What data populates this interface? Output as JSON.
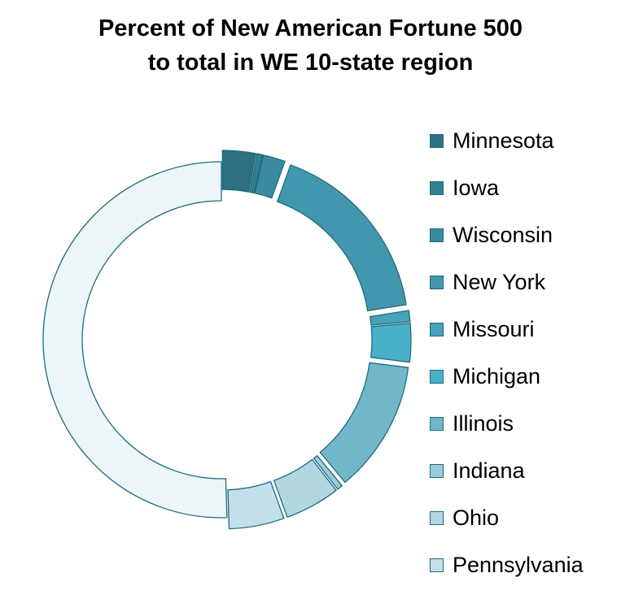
{
  "title_line1": "Percent of New American Fortune 500",
  "title_line2": "to total in WE 10-state region",
  "chart_data": {
    "type": "donut",
    "title": "Percent of New American Fortune 500 to total in WE 10-state region",
    "legend_position": "right",
    "slices": [
      {
        "name": "Minnesota",
        "value": 3.0,
        "color": "#2e6f84"
      },
      {
        "name": "Iowa",
        "value": 0.5,
        "color": "#347f94"
      },
      {
        "name": "Wisconsin",
        "value": 2.0,
        "color": "#3a8aa0"
      },
      {
        "name": "New York",
        "value": 17.0,
        "color": "#4297af"
      },
      {
        "name": "Missouri",
        "value": 1.0,
        "color": "#45a2b9"
      },
      {
        "name": "Michigan",
        "value": 3.5,
        "color": "#49b0c9"
      },
      {
        "name": "Illinois",
        "value": 12.0,
        "color": "#72b6ca"
      },
      {
        "name": "Indiana",
        "value": 0.5,
        "color": "#9ccbdb"
      },
      {
        "name": "Ohio",
        "value": 5.0,
        "color": "#b2d7e3"
      },
      {
        "name": "Pennsylvania",
        "value": 5.0,
        "color": "#c3dfe9"
      },
      {
        "name": "",
        "value": 50.5,
        "color": "#ecf5f7",
        "in_legend": false
      }
    ]
  }
}
